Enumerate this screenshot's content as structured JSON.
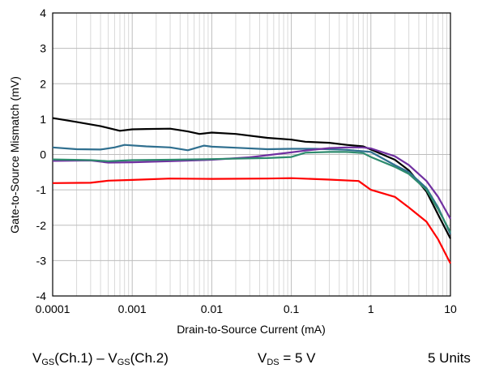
{
  "chart_data": {
    "type": "line",
    "xlabel": "Drain-to-Source Current (mA)",
    "ylabel": "Gate-to-Source Mismatch (mV)",
    "xscale": "log",
    "xlim": [
      0.0001,
      10
    ],
    "ylim": [
      -4,
      4
    ],
    "grid": true,
    "x_tick_labels": [
      "0.0001",
      "0.001",
      "0.01",
      "0.1",
      "1",
      "10"
    ],
    "y_tick_labels": [
      "4",
      "3",
      "2",
      "1",
      "0",
      "-1",
      "-2",
      "-3",
      "-4"
    ],
    "series": [
      {
        "color": "#000000",
        "points": [
          [
            0.0001,
            1.03
          ],
          [
            0.0002,
            0.92
          ],
          [
            0.0004,
            0.8
          ],
          [
            0.0007,
            0.67
          ],
          [
            0.001,
            0.71
          ],
          [
            0.0015,
            0.72
          ],
          [
            0.003,
            0.73
          ],
          [
            0.005,
            0.65
          ],
          [
            0.007,
            0.58
          ],
          [
            0.01,
            0.62
          ],
          [
            0.02,
            0.58
          ],
          [
            0.05,
            0.47
          ],
          [
            0.1,
            0.42
          ],
          [
            0.15,
            0.36
          ],
          [
            0.3,
            0.33
          ],
          [
            0.5,
            0.27
          ],
          [
            0.8,
            0.23
          ],
          [
            1,
            0.14
          ],
          [
            2,
            -0.15
          ],
          [
            3,
            -0.45
          ],
          [
            5,
            -1.05
          ],
          [
            7,
            -1.7
          ],
          [
            10,
            -2.38
          ]
        ]
      },
      {
        "color": "#2f6f8f",
        "points": [
          [
            0.0001,
            0.2
          ],
          [
            0.0002,
            0.15
          ],
          [
            0.0004,
            0.14
          ],
          [
            0.0006,
            0.2
          ],
          [
            0.0008,
            0.27
          ],
          [
            0.0015,
            0.23
          ],
          [
            0.003,
            0.2
          ],
          [
            0.005,
            0.12
          ],
          [
            0.008,
            0.25
          ],
          [
            0.01,
            0.22
          ],
          [
            0.02,
            0.19
          ],
          [
            0.05,
            0.15
          ],
          [
            0.1,
            0.16
          ],
          [
            0.2,
            0.16
          ],
          [
            0.5,
            0.13
          ],
          [
            1,
            0.07
          ],
          [
            2,
            -0.3
          ],
          [
            3,
            -0.5
          ],
          [
            5,
            -0.95
          ],
          [
            7,
            -1.5
          ],
          [
            10,
            -2.25
          ]
        ]
      },
      {
        "color": "#7030a0",
        "points": [
          [
            0.0001,
            -0.18
          ],
          [
            0.0003,
            -0.17
          ],
          [
            0.0005,
            -0.23
          ],
          [
            0.001,
            -0.22
          ],
          [
            0.003,
            -0.19
          ],
          [
            0.01,
            -0.15
          ],
          [
            0.03,
            -0.08
          ],
          [
            0.1,
            0.06
          ],
          [
            0.15,
            0.11
          ],
          [
            0.3,
            0.18
          ],
          [
            0.5,
            0.2
          ],
          [
            0.8,
            0.2
          ],
          [
            1,
            0.17
          ],
          [
            2,
            -0.05
          ],
          [
            3,
            -0.3
          ],
          [
            5,
            -0.75
          ],
          [
            7,
            -1.2
          ],
          [
            10,
            -1.82
          ]
        ]
      },
      {
        "color": "#2e8b6e",
        "points": [
          [
            0.0001,
            -0.14
          ],
          [
            0.0003,
            -0.16
          ],
          [
            0.0005,
            -0.19
          ],
          [
            0.001,
            -0.16
          ],
          [
            0.003,
            -0.15
          ],
          [
            0.01,
            -0.13
          ],
          [
            0.05,
            -0.1
          ],
          [
            0.1,
            -0.07
          ],
          [
            0.15,
            0.05
          ],
          [
            0.3,
            0.07
          ],
          [
            0.5,
            0.07
          ],
          [
            0.8,
            0.04
          ],
          [
            1,
            -0.07
          ],
          [
            2,
            -0.35
          ],
          [
            3,
            -0.55
          ],
          [
            5,
            -1.0
          ],
          [
            7,
            -1.55
          ],
          [
            10,
            -2.2
          ]
        ]
      },
      {
        "color": "#ff0000",
        "points": [
          [
            0.0001,
            -0.81
          ],
          [
            0.0003,
            -0.8
          ],
          [
            0.0005,
            -0.74
          ],
          [
            0.001,
            -0.72
          ],
          [
            0.003,
            -0.68
          ],
          [
            0.01,
            -0.69
          ],
          [
            0.05,
            -0.68
          ],
          [
            0.1,
            -0.67
          ],
          [
            0.3,
            -0.71
          ],
          [
            0.7,
            -0.75
          ],
          [
            1,
            -1.0
          ],
          [
            2,
            -1.2
          ],
          [
            3,
            -1.5
          ],
          [
            5,
            -1.9
          ],
          [
            7,
            -2.4
          ],
          [
            10,
            -3.08
          ]
        ]
      }
    ]
  },
  "footer": {
    "formula": {
      "v1": "V",
      "s1": "GS",
      "t1": "(Ch.1) – ",
      "v2": "V",
      "s2": "GS",
      "t2": "(Ch.2)"
    },
    "condition": {
      "v": "V",
      "s": "DS",
      "t": " = 5 V"
    },
    "units": "5 Units"
  }
}
